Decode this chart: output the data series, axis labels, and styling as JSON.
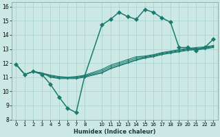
{
  "xlabel": "Humidex (Indice chaleur)",
  "ylabel": "",
  "bg_color": "#cce8e5",
  "grid_color": "#aad4d0",
  "line_color": "#1a7a6e",
  "xlim": [
    -0.5,
    23.5
  ],
  "ylim": [
    8,
    16.3
  ],
  "xticks": [
    0,
    1,
    2,
    3,
    4,
    5,
    6,
    7,
    8,
    10,
    11,
    12,
    13,
    14,
    15,
    16,
    17,
    18,
    19,
    20,
    21,
    22,
    23
  ],
  "yticks": [
    8,
    9,
    10,
    11,
    12,
    13,
    14,
    15,
    16
  ],
  "lines": [
    {
      "x": [
        0,
        1,
        2,
        3,
        4,
        5,
        6,
        7,
        8,
        10,
        11,
        12,
        13,
        14,
        15,
        16,
        17,
        18,
        19,
        20,
        21,
        22,
        23
      ],
      "y": [
        11.9,
        11.2,
        11.4,
        11.2,
        10.5,
        9.6,
        8.8,
        8.5,
        11.1,
        14.7,
        15.1,
        15.6,
        15.3,
        15.1,
        15.8,
        15.6,
        15.2,
        14.9,
        13.1,
        13.1,
        12.9,
        13.1,
        13.7
      ],
      "lw": 1.1,
      "ms": 3.0,
      "marker": "D"
    },
    {
      "x": [
        0,
        1,
        2,
        3,
        4,
        5,
        6,
        7,
        8,
        10,
        11,
        12,
        13,
        14,
        15,
        16,
        17,
        18,
        19,
        20,
        21,
        22,
        23
      ],
      "y": [
        11.9,
        11.2,
        11.4,
        11.3,
        11.15,
        11.05,
        11.0,
        11.05,
        11.15,
        11.55,
        11.85,
        12.05,
        12.25,
        12.45,
        12.5,
        12.6,
        12.75,
        12.85,
        12.95,
        13.05,
        13.1,
        13.15,
        13.25
      ],
      "lw": 0.8,
      "ms": 2.0,
      "marker": "+"
    },
    {
      "x": [
        0,
        1,
        2,
        3,
        4,
        5,
        6,
        7,
        8,
        10,
        11,
        12,
        13,
        14,
        15,
        16,
        17,
        18,
        19,
        20,
        21,
        22,
        23
      ],
      "y": [
        11.9,
        11.2,
        11.4,
        11.3,
        11.1,
        11.0,
        11.0,
        11.0,
        11.1,
        11.45,
        11.75,
        11.95,
        12.15,
        12.35,
        12.45,
        12.55,
        12.7,
        12.8,
        12.9,
        13.0,
        13.05,
        13.1,
        13.2
      ],
      "lw": 0.8,
      "ms": 2.0,
      "marker": "+"
    },
    {
      "x": [
        0,
        1,
        2,
        3,
        4,
        5,
        6,
        7,
        8,
        10,
        11,
        12,
        13,
        14,
        15,
        16,
        17,
        18,
        19,
        20,
        21,
        22,
        23
      ],
      "y": [
        11.9,
        11.2,
        11.4,
        11.3,
        11.05,
        10.95,
        10.95,
        10.95,
        11.05,
        11.35,
        11.65,
        11.85,
        12.05,
        12.25,
        12.4,
        12.5,
        12.65,
        12.75,
        12.85,
        12.95,
        13.0,
        13.05,
        13.15
      ],
      "lw": 0.8,
      "ms": 2.0,
      "marker": "+"
    },
    {
      "x": [
        0,
        1,
        2,
        3,
        4,
        5,
        6,
        7,
        8,
        10,
        11,
        12,
        13,
        14,
        15,
        16,
        17,
        18,
        19,
        20,
        21,
        22,
        23
      ],
      "y": [
        11.9,
        11.2,
        11.4,
        11.3,
        11.0,
        10.9,
        10.9,
        10.9,
        11.0,
        11.3,
        11.6,
        11.8,
        12.0,
        12.2,
        12.35,
        12.45,
        12.6,
        12.7,
        12.8,
        12.9,
        12.95,
        13.0,
        13.1
      ],
      "lw": 0.8,
      "ms": 2.0,
      "marker": "+"
    }
  ]
}
